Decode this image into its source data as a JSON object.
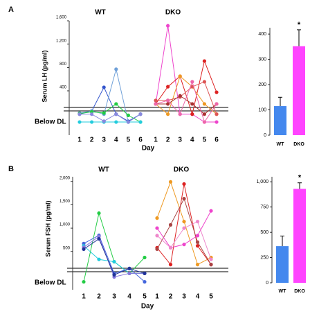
{
  "chart_data": [
    {
      "type": "line",
      "panel": "A",
      "ylabel": "Serum LH (pg/ml)",
      "xlabel": "Day",
      "below_label": "Below DL",
      "x": [
        1,
        2,
        3,
        4,
        5,
        6
      ],
      "ylim": [
        -360,
        1600
      ],
      "yticks": [
        {
          "value": 400,
          "label": "400"
        },
        {
          "value": 800,
          "label": "800"
        },
        {
          "value": 1200,
          "label": "1,200"
        },
        {
          "value": 1600,
          "label": "1,600"
        }
      ],
      "groups": [
        {
          "name": "WT",
          "series": [
            {
              "color": "#3355cc",
              "values": [
                0,
                55,
                460,
                0,
                -120,
                0
              ]
            },
            {
              "color": "#6fa0d8",
              "values": [
                20,
                55,
                0,
                770,
                -135,
                0
              ]
            },
            {
              "color": "#22cc44",
              "values": [
                10,
                40,
                20,
                175,
                -20,
                -135
              ]
            },
            {
              "color": "#22ccdd",
              "values": [
                -135,
                -135,
                -135,
                -135,
                -135,
                -135
              ]
            },
            {
              "color": "#8888dd",
              "values": [
                0,
                0,
                -120,
                0,
                -135,
                0
              ]
            }
          ]
        },
        {
          "name": "DKO",
          "series": [
            {
              "color": "#ee44cc",
              "values": [
                175,
                1515,
                0,
                0,
                -135,
                -135
              ]
            },
            {
              "color": "#dd2222",
              "values": [
                175,
                470,
                650,
                0,
                910,
                375
              ]
            },
            {
              "color": "#ee9922",
              "values": [
                175,
                0,
                650,
                470,
                175,
                0
              ]
            },
            {
              "color": "#dd5555",
              "values": [
                235,
                235,
                295,
                470,
                555,
                0
              ]
            },
            {
              "color": "#aa3333",
              "values": [
                175,
                175,
                315,
                175,
                0,
                175
              ]
            },
            {
              "color": "#ee66aa",
              "values": [
                175,
                235,
                0,
                555,
                -135,
                175
              ]
            }
          ]
        }
      ]
    },
    {
      "type": "bar",
      "categories": [
        "WT",
        "DKO"
      ],
      "values": [
        115,
        352
      ],
      "errors": [
        35,
        65
      ],
      "colors": [
        "#4488ee",
        "#ff44ff"
      ],
      "ylim": [
        0,
        425
      ],
      "yticks": [
        0,
        100,
        200,
        300,
        400
      ],
      "significance": "*"
    },
    {
      "type": "line",
      "panel": "B",
      "ylabel": "Serum FSH (pg/ml)",
      "xlabel": "Day",
      "below_label": "Below DL",
      "x": [
        1,
        2,
        3,
        4,
        5
      ],
      "ylim": [
        -320,
        2100
      ],
      "yticks": [
        {
          "value": 500,
          "label": "500"
        },
        {
          "value": 1000,
          "label": "1,000"
        },
        {
          "value": 1500,
          "label": "1,500"
        },
        {
          "value": 2000,
          "label": "2,000"
        }
      ],
      "groups": [
        {
          "name": "WT",
          "series": [
            {
              "color": "#22cc44",
              "values": [
                -150,
                1320,
                280,
                30,
                370
              ]
            },
            {
              "color": "#4466dd",
              "values": [
                670,
                845,
                30,
                135,
                -150
              ]
            },
            {
              "color": "#22ccdd",
              "values": [
                620,
                330,
                280,
                30,
                30
              ]
            },
            {
              "color": "#8877dd",
              "values": [
                590,
                820,
                -45,
                30,
                30
              ]
            },
            {
              "color": "#223399",
              "values": [
                550,
                770,
                0,
                135,
                30
              ]
            }
          ]
        },
        {
          "name": "DKO",
          "series": [
            {
              "color": "#ee9922",
              "values": [
                1215,
                1990,
                1140,
                220,
                370
              ]
            },
            {
              "color": "#dd2222",
              "values": [
                580,
                220,
                1945,
                620,
                220
              ]
            },
            {
              "color": "#aa4444",
              "values": [
                550,
                1070,
                1630,
                700,
                220
              ]
            },
            {
              "color": "#ee44cc",
              "values": [
                1000,
                580,
                650,
                840,
                1370
              ]
            },
            {
              "color": "#ee88cc",
              "values": [
                840,
                580,
                1000,
                1140,
                330
              ]
            }
          ]
        }
      ]
    },
    {
      "type": "bar",
      "categories": [
        "WT",
        "DKO"
      ],
      "values": [
        363,
        930
      ],
      "errors": [
        100,
        60
      ],
      "colors": [
        "#4488ee",
        "#ff44ff"
      ],
      "ylim": [
        0,
        1050
      ],
      "yticks": [
        0,
        250,
        500,
        750,
        {
          "value": 1000,
          "label": "1,000"
        }
      ],
      "significance": "*"
    }
  ]
}
